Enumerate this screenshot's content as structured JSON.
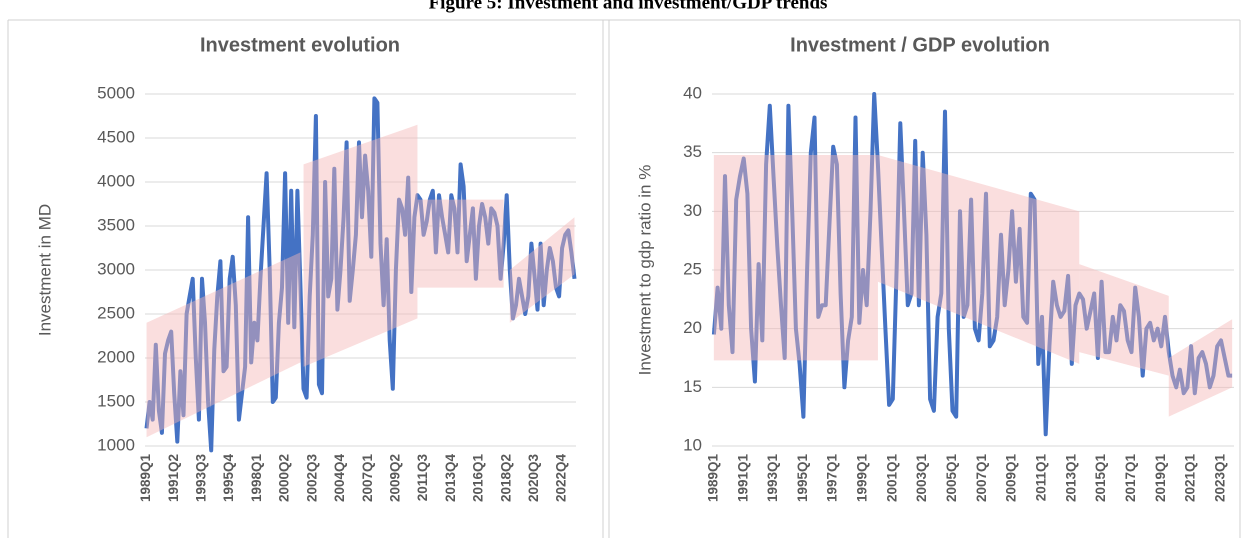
{
  "figure_title": "Figure 5: Investment and investment/GDP trends",
  "chart_data": [
    {
      "type": "line",
      "title": "Investment evolution",
      "y_label": "Investment in MD",
      "ylim": [
        1000,
        5000
      ],
      "yticks": [
        1000,
        1500,
        2000,
        2500,
        3000,
        3500,
        4000,
        4500,
        5000
      ],
      "grid": true,
      "categories": [
        "1989Q1",
        null,
        null,
        null,
        null,
        null,
        null,
        null,
        null,
        "1991Q2",
        null,
        null,
        null,
        null,
        null,
        null,
        null,
        null,
        "1993Q3",
        null,
        null,
        null,
        null,
        null,
        null,
        null,
        null,
        "1995Q4",
        null,
        null,
        null,
        null,
        null,
        null,
        null,
        null,
        "1998Q1",
        null,
        null,
        null,
        null,
        null,
        null,
        null,
        null,
        "2000Q2",
        null,
        null,
        null,
        null,
        null,
        null,
        null,
        null,
        "2002Q3",
        null,
        null,
        null,
        null,
        null,
        null,
        null,
        null,
        "2004Q4",
        null,
        null,
        null,
        null,
        null,
        null,
        null,
        null,
        "2007Q1",
        null,
        null,
        null,
        null,
        null,
        null,
        null,
        null,
        "2009Q2",
        null,
        null,
        null,
        null,
        null,
        null,
        null,
        null,
        "2011Q3",
        null,
        null,
        null,
        null,
        null,
        null,
        null,
        null,
        "2013Q4",
        null,
        null,
        null,
        null,
        null,
        null,
        null,
        null,
        "2016Q1",
        null,
        null,
        null,
        null,
        null,
        null,
        null,
        null,
        "2018Q2",
        null,
        null,
        null,
        null,
        null,
        null,
        null,
        null,
        "2020Q3",
        null,
        null,
        null,
        null,
        null,
        null,
        null,
        null,
        "2022Q4",
        null,
        null,
        null,
        null
      ],
      "series": [
        {
          "color": "#4472c4",
          "values": [
            1200,
            1500,
            1300,
            2150,
            1400,
            1150,
            2050,
            2200,
            2300,
            1600,
            1050,
            1850,
            1350,
            2500,
            2700,
            2900,
            2000,
            1300,
            2900,
            2400,
            1500,
            950,
            2100,
            2700,
            3100,
            1850,
            1900,
            2900,
            3150,
            2600,
            1300,
            1600,
            1900,
            3600,
            1950,
            2400,
            2200,
            2900,
            3500,
            4100,
            3000,
            1500,
            1550,
            2400,
            2800,
            4100,
            2400,
            3900,
            2350,
            3900,
            2800,
            1650,
            1550,
            2700,
            3400,
            4750,
            1700,
            1600,
            4000,
            2700,
            2900,
            4150,
            2550,
            3000,
            3600,
            4450,
            2650,
            3000,
            3400,
            4450,
            3600,
            4300,
            3900,
            3150,
            4950,
            4900,
            3300,
            2600,
            3350,
            2200,
            1650,
            3000,
            3800,
            3700,
            3400,
            4050,
            2750,
            3600,
            3850,
            3800,
            3400,
            3550,
            3800,
            3900,
            3200,
            3850,
            3600,
            3400,
            3200,
            3850,
            3700,
            3200,
            4200,
            3950,
            3100,
            3400,
            3700,
            2900,
            3500,
            3750,
            3600,
            3300,
            3700,
            3650,
            3500,
            2900,
            3300,
            3850,
            3000,
            2450,
            2600,
            2900,
            2700,
            2500,
            2700,
            3300,
            2950,
            2550,
            3300,
            2600,
            3000,
            3250,
            3100,
            2800,
            2700,
            3250,
            3400,
            3450,
            3200,
            2900
          ]
        }
      ],
      "trend_bands": [
        {
          "x": [
            0,
            50
          ],
          "low": [
            1100,
            1950
          ],
          "high": [
            2400,
            3200
          ]
        },
        {
          "x": [
            51,
            88
          ],
          "low": [
            1900,
            2450
          ],
          "high": [
            4200,
            4650
          ]
        },
        {
          "x": [
            88,
            116
          ],
          "low": [
            2800,
            2800
          ],
          "high": [
            3800,
            3800
          ]
        },
        {
          "x": [
            118,
            139
          ],
          "low": [
            2400,
            2950
          ],
          "high": [
            3000,
            3600
          ]
        }
      ]
    },
    {
      "type": "line",
      "title": "Investment / GDP evolution",
      "y_label": "Investment to gdp ratio in %",
      "ylim": [
        10,
        40
      ],
      "yticks": [
        10,
        15,
        20,
        25,
        30,
        35,
        40
      ],
      "grid": true,
      "categories": [
        "1989Q1",
        null,
        null,
        null,
        null,
        null,
        null,
        null,
        "1991Q1",
        null,
        null,
        null,
        null,
        null,
        null,
        null,
        "1993Q1",
        null,
        null,
        null,
        null,
        null,
        null,
        null,
        "1995Q1",
        null,
        null,
        null,
        null,
        null,
        null,
        null,
        "1997Q1",
        null,
        null,
        null,
        null,
        null,
        null,
        null,
        "1999Q1",
        null,
        null,
        null,
        null,
        null,
        null,
        null,
        "2001Q1",
        null,
        null,
        null,
        null,
        null,
        null,
        null,
        "2003Q1",
        null,
        null,
        null,
        null,
        null,
        null,
        null,
        "2005Q1",
        null,
        null,
        null,
        null,
        null,
        null,
        null,
        "2007Q1",
        null,
        null,
        null,
        null,
        null,
        null,
        null,
        "2009Q1",
        null,
        null,
        null,
        null,
        null,
        null,
        null,
        "2011Q1",
        null,
        null,
        null,
        null,
        null,
        null,
        null,
        "2013Q1",
        null,
        null,
        null,
        null,
        null,
        null,
        null,
        "2015Q1",
        null,
        null,
        null,
        null,
        null,
        null,
        null,
        "2017Q1",
        null,
        null,
        null,
        null,
        null,
        null,
        null,
        "2019Q1",
        null,
        null,
        null,
        null,
        null,
        null,
        null,
        "2021Q1",
        null,
        null,
        null,
        null,
        null,
        null,
        null,
        "2023Q1",
        null,
        null,
        null
      ],
      "series": [
        {
          "color": "#4472c4",
          "values": [
            19.5,
            23.5,
            20,
            33,
            22,
            18,
            31,
            33,
            34.5,
            31.5,
            20,
            15.5,
            25.5,
            19,
            34,
            39,
            33,
            27,
            22,
            17.5,
            39,
            30,
            20,
            17,
            12.5,
            25,
            35,
            38,
            21,
            22,
            22,
            29,
            35.5,
            34,
            23,
            15,
            19,
            21,
            38,
            20.5,
            25,
            22,
            30,
            40,
            34,
            27,
            20,
            13.5,
            14,
            25,
            37.5,
            30,
            22,
            23,
            36,
            22,
            35,
            28,
            14,
            13,
            21,
            23,
            38.5,
            20,
            13,
            12.5,
            30,
            21,
            22,
            31,
            20,
            19,
            23,
            31.5,
            18.5,
            19,
            21,
            28,
            22,
            25,
            30,
            24,
            28.5,
            21,
            20.5,
            31.5,
            31,
            17,
            21,
            11,
            18.5,
            24,
            22,
            21,
            21.5,
            24.5,
            17,
            22,
            23,
            22.5,
            20,
            21.5,
            23,
            17.5,
            24,
            18,
            18,
            21,
            19,
            22,
            21.5,
            19,
            18,
            23.5,
            21,
            16,
            20,
            20.5,
            19,
            20,
            18.5,
            21,
            18,
            16,
            15,
            16.5,
            14.5,
            15,
            18.5,
            14.5,
            17.5,
            18,
            17,
            15,
            16,
            18.5,
            19,
            17.5,
            16,
            16
          ]
        }
      ],
      "trend_bands": [
        {
          "x": [
            0,
            44
          ],
          "low": [
            17.3,
            17.3
          ],
          "high": [
            34.8,
            34.8
          ]
        },
        {
          "x": [
            44,
            98
          ],
          "low": [
            24,
            17
          ],
          "high": [
            34.8,
            30
          ]
        },
        {
          "x": [
            98,
            122
          ],
          "low": [
            18,
            16
          ],
          "high": [
            25.5,
            22.8
          ]
        },
        {
          "x": [
            122,
            139
          ],
          "low": [
            12.5,
            15
          ],
          "high": [
            17.5,
            20.8
          ]
        }
      ]
    }
  ]
}
